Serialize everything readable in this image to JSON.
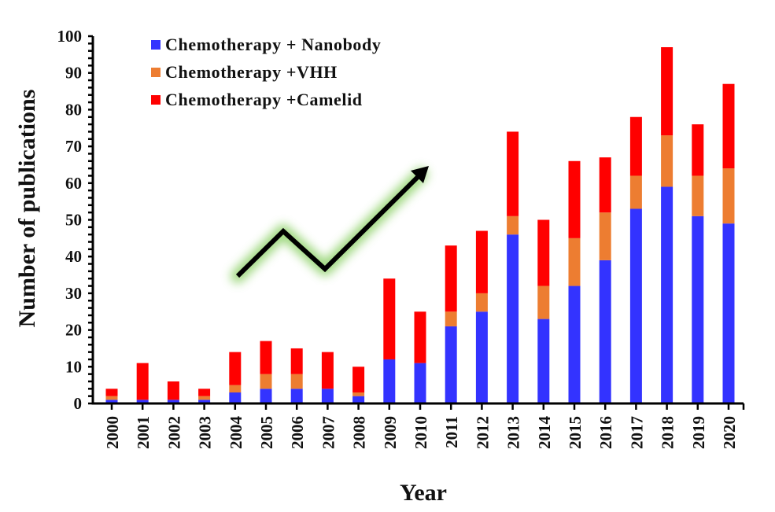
{
  "chart_data": {
    "type": "bar",
    "stacked": true,
    "title": "",
    "xlabel": "Year",
    "ylabel": "Number of publications",
    "ylim": [
      0,
      100
    ],
    "y_major_ticks": [
      0,
      10,
      20,
      30,
      40,
      50,
      60,
      70,
      80,
      90,
      100
    ],
    "y_minor_step": 2,
    "grid": false,
    "legend_position": "top-left",
    "categories": [
      "2000",
      "2001",
      "2002",
      "2003",
      "2004",
      "2005",
      "2006",
      "2007",
      "2008",
      "2009",
      "2010",
      "2011",
      "2012",
      "2013",
      "2014",
      "2015",
      "2016",
      "2017",
      "2018",
      "2019",
      "2020"
    ],
    "series": [
      {
        "name": "Chemotherapy + Nanobody",
        "color": "#3333FF",
        "values": [
          1,
          1,
          1,
          1,
          3,
          4,
          4,
          4,
          2,
          12,
          11,
          21,
          25,
          46,
          23,
          32,
          39,
          53,
          59,
          51,
          49
        ]
      },
      {
        "name": "Chemotherapy +VHH",
        "color": "#ED7D31",
        "values": [
          1,
          0,
          0,
          1,
          2,
          4,
          4,
          0,
          1,
          0,
          0,
          4,
          5,
          5,
          9,
          13,
          13,
          9,
          14,
          11,
          15
        ]
      },
      {
        "name": "Chemotherapy +Camelid",
        "color": "#FF0000",
        "values": [
          2,
          10,
          5,
          2,
          9,
          9,
          7,
          10,
          7,
          22,
          14,
          18,
          17,
          23,
          18,
          21,
          15,
          16,
          24,
          14,
          23
        ]
      }
    ],
    "totals": [
      4,
      11,
      6,
      4,
      14,
      17,
      15,
      14,
      10,
      34,
      25,
      43,
      47,
      74,
      50,
      66,
      67,
      78,
      97,
      76,
      87
    ],
    "annotations": [
      {
        "type": "trend-arrow",
        "description": "black zigzag arrow with green glow pointing upward",
        "color": "#000000",
        "glow_color": "#8FD16A"
      }
    ]
  }
}
